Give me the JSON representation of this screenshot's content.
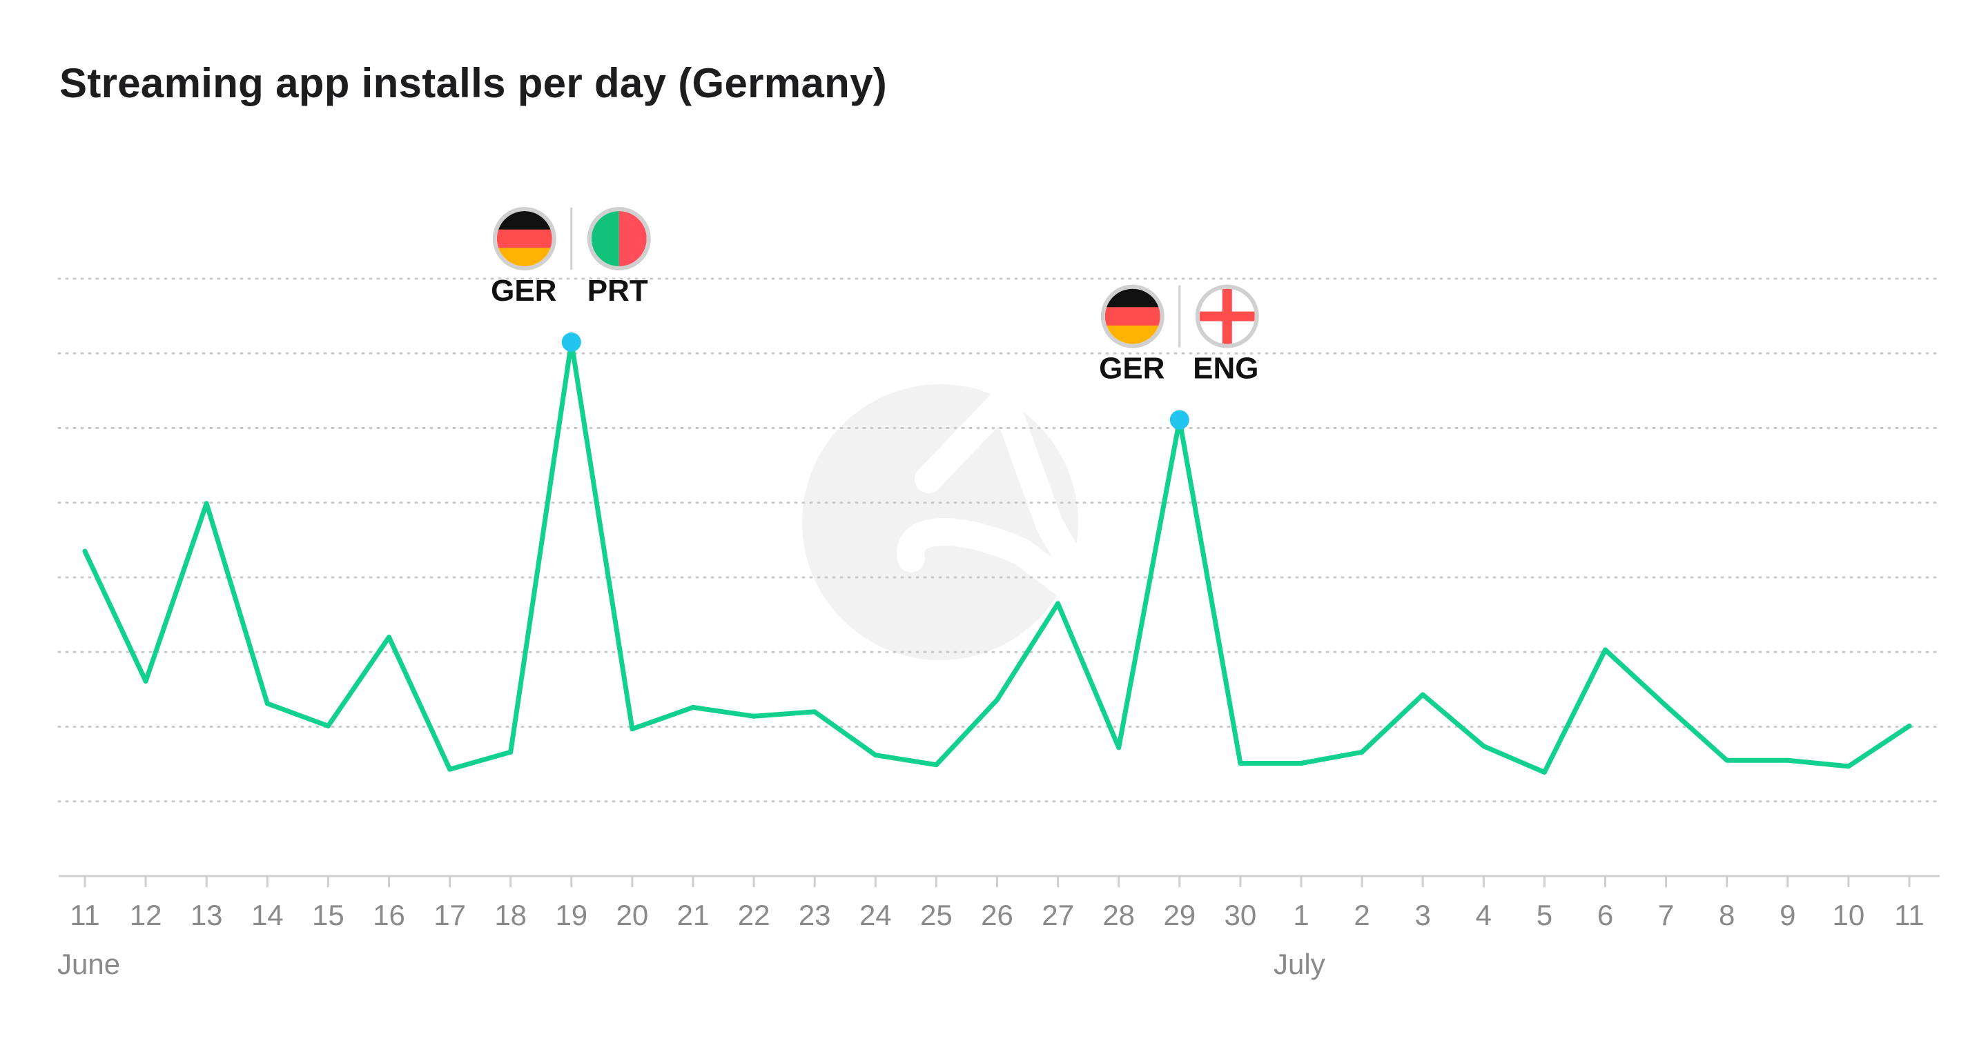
{
  "colors": {
    "line": "#12d18e",
    "marker": "#22c4f0",
    "grid": "#c9c9c9",
    "axis": "#cfcfcf",
    "watermark": "#f2f2f2",
    "ger_black": "#111111",
    "ger_red": "#ff4d4d",
    "ger_gold": "#ffb300",
    "prt_green": "#12c27a",
    "prt_red": "#ff4d5a",
    "eng_white": "#ffffff",
    "eng_red": "#ff4d4d"
  },
  "chart_data": {
    "type": "line",
    "title": "Streaming app installs per day (Germany)",
    "x": [
      "11",
      "12",
      "13",
      "14",
      "15",
      "16",
      "17",
      "18",
      "19",
      "20",
      "21",
      "22",
      "23",
      "24",
      "25",
      "26",
      "27",
      "28",
      "29",
      "30",
      "1",
      "2",
      "3",
      "4",
      "5",
      "6",
      "7",
      "8",
      "9",
      "10",
      "11"
    ],
    "months": [
      {
        "label": "June",
        "start_index": 0
      },
      {
        "label": "July",
        "start_index": 20
      }
    ],
    "series": [
      {
        "values": [
          43.5,
          26.1,
          49.9,
          23.1,
          20.1,
          32.0,
          14.3,
          16.6,
          71.5,
          19.7,
          22.6,
          21.4,
          22.0,
          16.2,
          14.9,
          23.6,
          36.5,
          17.2,
          61.1,
          15.1,
          15.1,
          16.6,
          24.3,
          17.4,
          13.9,
          30.3,
          22.8,
          15.5,
          15.5,
          14.7,
          20.1
        ]
      }
    ],
    "ylim": [
      0,
      80
    ],
    "grid": true,
    "gridline_values": [
      10,
      20,
      30,
      40,
      50,
      60,
      70,
      80
    ],
    "y_tick_labels_shown": false,
    "annotations": [
      {
        "index": 8,
        "teams": [
          "GER",
          "PRT"
        ],
        "flags": [
          "germany-flag",
          "portugal-flag"
        ]
      },
      {
        "index": 18,
        "teams": [
          "GER",
          "ENG"
        ],
        "flags": [
          "germany-flag",
          "england-flag"
        ]
      }
    ]
  }
}
